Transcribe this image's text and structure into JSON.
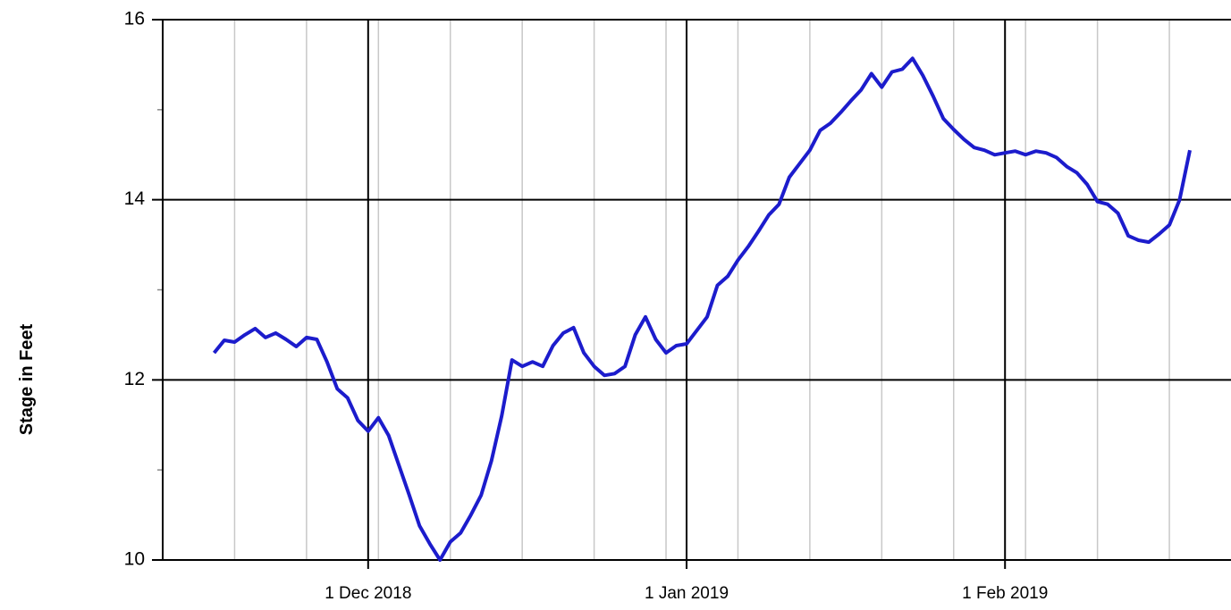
{
  "chart_data": {
    "type": "line",
    "y_label": "Stage in Feet",
    "xlim": [
      "2018-11-11",
      "2019-02-23"
    ],
    "ylim": [
      10,
      16
    ],
    "yticks": [
      10,
      12,
      14,
      16
    ],
    "y_minor_ticks": [
      11,
      13,
      15
    ],
    "xticks": [
      {
        "value": "2018-12-01",
        "label": "1 Dec 2018"
      },
      {
        "value": "2019-01-01",
        "label": "1 Jan 2019"
      },
      {
        "value": "2019-02-01",
        "label": "1 Feb 2019"
      }
    ],
    "x_minor_ticks": [
      "2018-11-18",
      "2018-11-25",
      "2018-12-02",
      "2018-12-09",
      "2018-12-16",
      "2018-12-23",
      "2018-12-30",
      "2019-01-06",
      "2019-01-13",
      "2019-01-20",
      "2019-01-27",
      "2019-02-03",
      "2019-02-10",
      "2019-02-17"
    ],
    "grid": true,
    "x": [
      "2018-11-16",
      "2018-11-17",
      "2018-11-18",
      "2018-11-19",
      "2018-11-20",
      "2018-11-21",
      "2018-11-22",
      "2018-11-23",
      "2018-11-24",
      "2018-11-25",
      "2018-11-26",
      "2018-11-27",
      "2018-11-28",
      "2018-11-29",
      "2018-11-30",
      "2018-12-01",
      "2018-12-02",
      "2018-12-03",
      "2018-12-04",
      "2018-12-05",
      "2018-12-06",
      "2018-12-07",
      "2018-12-08",
      "2018-12-09",
      "2018-12-10",
      "2018-12-11",
      "2018-12-12",
      "2018-12-13",
      "2018-12-14",
      "2018-12-15",
      "2018-12-16",
      "2018-12-17",
      "2018-12-18",
      "2018-12-19",
      "2018-12-20",
      "2018-12-21",
      "2018-12-22",
      "2018-12-23",
      "2018-12-24",
      "2018-12-25",
      "2018-12-26",
      "2018-12-27",
      "2018-12-28",
      "2018-12-29",
      "2018-12-30",
      "2018-12-31",
      "2019-01-01",
      "2019-01-02",
      "2019-01-03",
      "2019-01-04",
      "2019-01-05",
      "2019-01-06",
      "2019-01-07",
      "2019-01-08",
      "2019-01-09",
      "2019-01-10",
      "2019-01-11",
      "2019-01-12",
      "2019-01-13",
      "2019-01-14",
      "2019-01-15",
      "2019-01-16",
      "2019-01-17",
      "2019-01-18",
      "2019-01-19",
      "2019-01-20",
      "2019-01-21",
      "2019-01-22",
      "2019-01-23",
      "2019-01-24",
      "2019-01-25",
      "2019-01-26",
      "2019-01-27",
      "2019-01-28",
      "2019-01-29",
      "2019-01-30",
      "2019-01-31",
      "2019-02-01",
      "2019-02-02",
      "2019-02-03",
      "2019-02-04",
      "2019-02-05",
      "2019-02-06",
      "2019-02-07",
      "2019-02-08",
      "2019-02-09",
      "2019-02-10",
      "2019-02-11",
      "2019-02-12",
      "2019-02-13",
      "2019-02-14",
      "2019-02-15",
      "2019-02-16",
      "2019-02-17",
      "2019-02-18",
      "2019-02-19"
    ],
    "series": [
      {
        "color": "#1c1ccc",
        "values": [
          12.3,
          12.44,
          12.42,
          12.5,
          12.57,
          12.47,
          12.52,
          12.45,
          12.37,
          12.47,
          12.45,
          12.2,
          11.9,
          11.8,
          11.55,
          11.43,
          11.58,
          11.38,
          11.05,
          10.72,
          10.38,
          10.18,
          10.0,
          10.2,
          10.3,
          10.5,
          10.72,
          11.1,
          11.6,
          12.22,
          12.15,
          12.2,
          12.15,
          12.38,
          12.52,
          12.58,
          12.3,
          12.15,
          12.05,
          12.07,
          12.15,
          12.5,
          12.7,
          12.45,
          12.3,
          12.38,
          12.4,
          12.55,
          12.7,
          13.05,
          13.15,
          13.33,
          13.48,
          13.65,
          13.83,
          13.95,
          14.25,
          14.4,
          14.55,
          14.77,
          14.85,
          14.97,
          15.1,
          15.22,
          15.4,
          15.25,
          15.42,
          15.45,
          15.57,
          15.38,
          15.15,
          14.9,
          14.78,
          14.67,
          14.58,
          14.55,
          14.5,
          14.52,
          14.54,
          14.5,
          14.54,
          14.52,
          14.47,
          14.37,
          14.3,
          14.17,
          13.98,
          13.95,
          13.85,
          13.6,
          13.55,
          13.53,
          13.62,
          13.72,
          14.0,
          14.55
        ]
      }
    ]
  }
}
